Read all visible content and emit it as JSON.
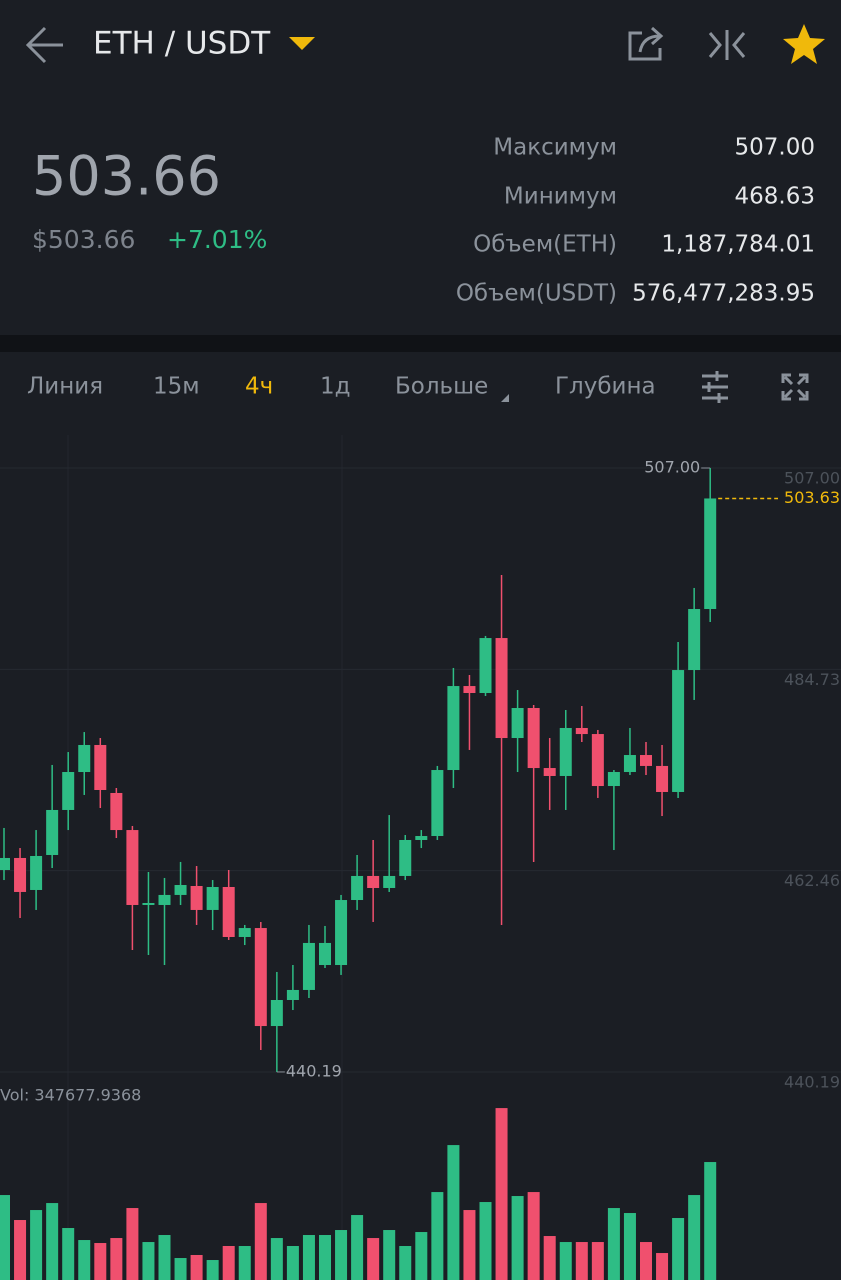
{
  "header": {
    "pair": "ETH / USDT"
  },
  "ticker": {
    "price": "503.66",
    "price_usd": "$503.66",
    "change": "+7.01%",
    "stats": [
      {
        "label": "Максимум",
        "value": "507.00"
      },
      {
        "label": "Минимум",
        "value": "468.63"
      },
      {
        "label": "Объем(ETH)",
        "value": "1,187,784.01"
      },
      {
        "label": "Объем(USDT)",
        "value": "576,477,283.95"
      }
    ]
  },
  "toolbar": {
    "tabs": [
      "Линия",
      "15м",
      "4ч",
      "1д",
      "Больше",
      "Глубина"
    ]
  },
  "chart_data": {
    "type": "candlestick",
    "up_color": "#2ebd85",
    "down_color": "#f0506e",
    "open": [
      462.53,
      463.86,
      460.32,
      464.19,
      469.17,
      473.37,
      476.36,
      471.05,
      466.95,
      458.66,
      458.66,
      459.77,
      460.76,
      458.11,
      460.65,
      455.12,
      456.11,
      445.27,
      448.15,
      449.26,
      452.02,
      452.02,
      459.21,
      461.87,
      460.54,
      461.87,
      465.85,
      466.29,
      473.59,
      482.88,
      482.11,
      488.19,
      477.13,
      480.45,
      473.81,
      472.93,
      478.24,
      477.57,
      471.82,
      473.37,
      475.25,
      474.04,
      471.16,
      484.65,
      491.4
    ],
    "high": [
      467.18,
      464.96,
      466.95,
      474.15,
      475.58,
      477.79,
      477.13,
      471.6,
      467.4,
      462.31,
      461.65,
      463.42,
      462.97,
      461.42,
      462.53,
      456.45,
      456.78,
      451.25,
      452.02,
      456.45,
      456.34,
      459.77,
      464.19,
      465.85,
      468.61,
      466.4,
      466.95,
      474.04,
      484.88,
      484.1,
      488.42,
      495.16,
      482.44,
      480.78,
      477.13,
      480.23,
      480.67,
      478.02,
      473.59,
      478.24,
      476.69,
      476.36,
      487.75,
      493.73,
      507.0
    ],
    "low": [
      461.42,
      457.22,
      458.11,
      462.75,
      466.95,
      470.83,
      469.39,
      466.07,
      453.68,
      453.13,
      452.02,
      458.66,
      456.45,
      455.89,
      454.79,
      454.23,
      442.62,
      440.19,
      447.04,
      448.37,
      451.69,
      450.92,
      458.11,
      456.78,
      460.1,
      461.42,
      464.96,
      465.85,
      471.6,
      475.81,
      481.78,
      456.45,
      473.37,
      463.42,
      469.17,
      469.17,
      476.69,
      470.5,
      464.74,
      473.04,
      473.04,
      468.5,
      470.5,
      481.34,
      489.96
    ],
    "close": [
      463.86,
      460.1,
      464.08,
      469.17,
      473.37,
      476.36,
      471.38,
      466.95,
      458.66,
      458.88,
      459.77,
      460.87,
      458.11,
      460.65,
      455.12,
      456.11,
      445.27,
      448.15,
      449.26,
      454.46,
      454.46,
      459.21,
      461.87,
      460.54,
      461.87,
      465.85,
      466.29,
      473.59,
      482.88,
      482.11,
      488.19,
      477.13,
      480.45,
      473.81,
      472.93,
      478.24,
      477.57,
      471.82,
      473.37,
      475.25,
      474.04,
      471.16,
      484.65,
      491.4,
      503.63
    ],
    "volume": [
      250400,
      176800,
      206200,
      226800,
      153200,
      117800,
      109000,
      123700,
      212100,
      111900,
      132600,
      64800,
      73700,
      58900,
      100200,
      100200,
      226800,
      123700,
      100200,
      132600,
      132600,
      147300,
      191500,
      123700,
      147300,
      100200,
      141400,
      259200,
      397700,
      206200,
      229800,
      506700,
      247500,
      259200,
      129600,
      111900,
      111900,
      111900,
      212100,
      197400,
      111900,
      79500,
      182700,
      250400,
      347677.9368
    ],
    "volume_label": "Vol: 347677.9368",
    "ylim": [
      439.3,
      510.65
    ],
    "yticks": [
      {
        "value": 507,
        "label": "507.00"
      },
      484.73,
      462.46,
      440.19
    ],
    "vol_ylim": [
      0,
      560000
    ],
    "grid": true,
    "price_line": {
      "value": 503.63,
      "label": "503.63",
      "color": "#f0b90b"
    },
    "max_marker": {
      "value": 507,
      "label": "507.00"
    },
    "min_marker": {
      "value": 440.19,
      "label": "440.19"
    }
  }
}
